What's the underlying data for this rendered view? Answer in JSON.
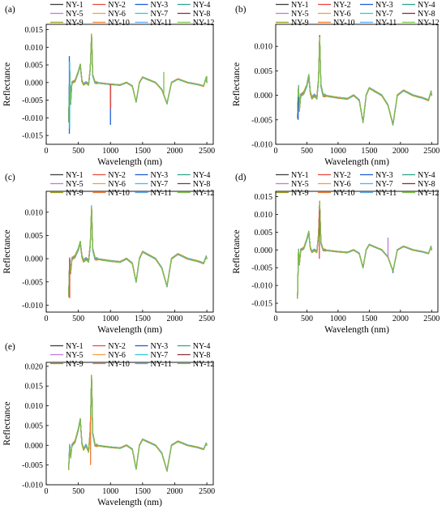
{
  "figure": {
    "panels": [
      {
        "label": "(a)",
        "xlabel": "Wavelength (nm)",
        "ylabel": "Reflectance"
      },
      {
        "label": "(b)",
        "xlabel": "Wavelength (nm)",
        "ylabel": "Reflectance"
      },
      {
        "label": "(c)",
        "xlabel": "Wavelength (nm)",
        "ylabel": "Reflectance"
      },
      {
        "label": "(d)",
        "xlabel": "Wavelength (nm)",
        "ylabel": "Reflectance"
      },
      {
        "label": "(e)",
        "xlabel": "Wavelength (nm)",
        "ylabel": "Reflectance"
      }
    ]
  },
  "chart_data": [
    {
      "type": "line",
      "title": "",
      "panel_label": "(a)",
      "xlabel": "Wavelength (nm)",
      "ylabel": "Reflectance",
      "xlim": [
        0,
        2600
      ],
      "ylim": [
        -0.0175,
        0.0165
      ],
      "xticks": [
        0,
        500,
        1000,
        1500,
        2000,
        2500
      ],
      "yticks": [
        -0.015,
        -0.01,
        -0.005,
        0.0,
        0.005,
        0.01,
        0.015
      ],
      "ytick_labels": [
        "-0.015",
        "-0.010",
        "-0.005",
        "0.000",
        "0.005",
        "0.010",
        "0.015"
      ],
      "legend": {
        "placement": "top",
        "columns": 4,
        "entries": [
          "NY-1",
          "NY-2",
          "NY-3",
          "NY-4",
          "NY-5",
          "NY-6",
          "NY-7",
          "NY-8",
          "NY-9",
          "NY-10",
          "NY-11",
          "NY-12"
        ]
      },
      "colors": [
        "#3f3f3f",
        "#e8483c",
        "#1f5fd6",
        "#2ca58d",
        "#c27be0",
        "#f2a03d",
        "#33c7e0",
        "#8b2e3a",
        "#9a9a1a",
        "#f07b2c",
        "#5fa8e8",
        "#7cc242"
      ],
      "base_profile": [
        [
          350,
          -0.011
        ],
        [
          365,
          0.004
        ],
        [
          380,
          -0.006
        ],
        [
          400,
          0.0
        ],
        [
          450,
          0.0005
        ],
        [
          500,
          0.003
        ],
        [
          530,
          0.005
        ],
        [
          555,
          0.0005
        ],
        [
          580,
          -0.0005
        ],
        [
          620,
          0.0
        ],
        [
          660,
          -0.0005
        ],
        [
          685,
          0.004
        ],
        [
          705,
          0.0135
        ],
        [
          725,
          0.002
        ],
        [
          760,
          0.0
        ],
        [
          1000,
          -0.0005
        ],
        [
          1150,
          -0.0007
        ],
        [
          1250,
          0.0
        ],
        [
          1340,
          -0.001
        ],
        [
          1400,
          -0.0055
        ],
        [
          1450,
          0.0
        ],
        [
          1500,
          0.0015
        ],
        [
          1700,
          0.0
        ],
        [
          1800,
          -0.002
        ],
        [
          1880,
          -0.006
        ],
        [
          1950,
          0.0
        ],
        [
          2050,
          0.001
        ],
        [
          2200,
          0.0
        ],
        [
          2350,
          -0.0005
        ],
        [
          2450,
          -0.001
        ],
        [
          2490,
          0.0015
        ],
        [
          2500,
          0.0
        ]
      ],
      "spikes": [
        {
          "series": 2,
          "x": 360,
          "values": [
            0.0075,
            -0.0145
          ]
        },
        {
          "series": 6,
          "x": 365,
          "values": [
            0.006,
            -0.013
          ]
        },
        {
          "series": 2,
          "x": 1000,
          "values": [
            -0.012
          ]
        },
        {
          "series": 1,
          "x": 1003,
          "values": [
            -0.0075
          ]
        },
        {
          "series": 11,
          "x": 1830,
          "values": [
            0.003
          ]
        },
        {
          "series": 11,
          "x": 2500,
          "values": [
            0.0018
          ]
        }
      ]
    },
    {
      "type": "line",
      "title": "",
      "panel_label": "(b)",
      "xlabel": "Wavelength (nm)",
      "ylabel": "Reflectance",
      "xlim": [
        0,
        2600
      ],
      "ylim": [
        -0.01,
        0.0145
      ],
      "xticks": [
        0,
        500,
        1000,
        1500,
        2000,
        2500
      ],
      "yticks": [
        -0.01,
        -0.005,
        0.0,
        0.005,
        0.01
      ],
      "ytick_labels": [
        "-0.010",
        "-0.005",
        "0.000",
        "0.005",
        "0.010"
      ],
      "legend": {
        "placement": "top",
        "columns": 4,
        "entries": [
          "NY-1",
          "NY-2",
          "NY-3",
          "NY-4",
          "NY-5",
          "NY-6",
          "NY-7",
          "NY-8",
          "NY-9",
          "NY-10",
          "NY-11",
          "NY-12"
        ]
      },
      "colors": [
        "#3f3f3f",
        "#e8483c",
        "#1f5fd6",
        "#2ca58d",
        "#c27be0",
        "#f2a03d",
        "#33c7e0",
        "#8b2e3a",
        "#9a9a1a",
        "#f07b2c",
        "#5fa8e8",
        "#7cc242"
      ],
      "base_profile": [
        [
          350,
          -0.0045
        ],
        [
          365,
          0.0018
        ],
        [
          380,
          -0.003
        ],
        [
          400,
          0.0
        ],
        [
          450,
          0.0005
        ],
        [
          500,
          0.002
        ],
        [
          530,
          0.004
        ],
        [
          555,
          0.0005
        ],
        [
          580,
          -0.0005
        ],
        [
          620,
          0.0
        ],
        [
          660,
          -0.0005
        ],
        [
          685,
          0.003
        ],
        [
          705,
          0.012
        ],
        [
          725,
          0.002
        ],
        [
          760,
          0.0
        ],
        [
          1000,
          -0.0005
        ],
        [
          1150,
          -0.0007
        ],
        [
          1250,
          0.0
        ],
        [
          1340,
          -0.001
        ],
        [
          1400,
          -0.0055
        ],
        [
          1450,
          0.0
        ],
        [
          1500,
          0.0015
        ],
        [
          1700,
          0.0
        ],
        [
          1800,
          -0.002
        ],
        [
          1880,
          -0.006
        ],
        [
          1950,
          0.0
        ],
        [
          2050,
          0.001
        ],
        [
          2200,
          0.0
        ],
        [
          2350,
          -0.0005
        ],
        [
          2450,
          -0.001
        ],
        [
          2490,
          0.0008
        ],
        [
          2500,
          0.0
        ]
      ],
      "spikes": [
        {
          "series": 2,
          "x": 360,
          "values": [
            -0.005
          ]
        },
        {
          "series": 7,
          "x": 705,
          "values": [
            0.0122
          ]
        }
      ]
    },
    {
      "type": "line",
      "title": "",
      "panel_label": "(c)",
      "xlabel": "Wavelength (nm)",
      "ylabel": "Reflectance",
      "xlim": [
        0,
        2600
      ],
      "ylim": [
        -0.0115,
        0.0145
      ],
      "xticks": [
        0,
        500,
        1000,
        1500,
        2000,
        2500
      ],
      "yticks": [
        -0.01,
        -0.005,
        0.0,
        0.005,
        0.01
      ],
      "ytick_labels": [
        "-0.010",
        "-0.005",
        "0.000",
        "0.005",
        "0.010"
      ],
      "legend": {
        "placement": "top",
        "columns": 4,
        "entries": [
          "NY-1",
          "NY-2",
          "NY-3",
          "NY-4",
          "NY-5",
          "NY-6",
          "NY-7",
          "NY-8",
          "NY-9",
          "NY-10",
          "NY-11",
          "NY-12"
        ]
      },
      "colors": [
        "#3f3f3f",
        "#e8483c",
        "#1f5fd6",
        "#2ca58d",
        "#c27be0",
        "#f2a03d",
        "#33c7e0",
        "#8b2e3a",
        "#9a9a1a",
        "#f07b2c",
        "#5fa8e8",
        "#7cc242"
      ],
      "base_profile": [
        [
          350,
          -0.008
        ],
        [
          365,
          0.0
        ],
        [
          380,
          -0.003
        ],
        [
          400,
          0.0
        ],
        [
          450,
          0.0005
        ],
        [
          500,
          0.002
        ],
        [
          530,
          0.0035
        ],
        [
          555,
          0.0005
        ],
        [
          580,
          -0.0005
        ],
        [
          620,
          0.0
        ],
        [
          660,
          -0.0005
        ],
        [
          685,
          0.003
        ],
        [
          705,
          0.011
        ],
        [
          725,
          0.002
        ],
        [
          760,
          0.0
        ],
        [
          1000,
          -0.0005
        ],
        [
          1150,
          -0.0007
        ],
        [
          1250,
          0.0
        ],
        [
          1340,
          -0.001
        ],
        [
          1400,
          -0.005
        ],
        [
          1450,
          0.0
        ],
        [
          1500,
          0.0015
        ],
        [
          1700,
          0.0
        ],
        [
          1800,
          -0.002
        ],
        [
          1880,
          -0.006
        ],
        [
          1950,
          0.0
        ],
        [
          2050,
          0.001
        ],
        [
          2200,
          0.0
        ],
        [
          2350,
          -0.0005
        ],
        [
          2450,
          -0.001
        ],
        [
          2490,
          0.0005
        ],
        [
          2500,
          0.0
        ]
      ],
      "spikes": [
        {
          "series": 6,
          "x": 705,
          "values": [
            0.0115
          ]
        },
        {
          "series": 1,
          "x": 365,
          "values": [
            -0.0085
          ]
        }
      ]
    },
    {
      "type": "line",
      "title": "",
      "panel_label": "(d)",
      "xlabel": "Wavelength (nm)",
      "ylabel": "Reflectance",
      "xlim": [
        0,
        2600
      ],
      "ylim": [
        -0.0175,
        0.0165
      ],
      "xticks": [
        0,
        500,
        1000,
        1500,
        2000,
        2500
      ],
      "yticks": [
        -0.015,
        -0.01,
        -0.005,
        0.0,
        0.005,
        0.01,
        0.015
      ],
      "ytick_labels": [
        "-0.015",
        "-0.010",
        "-0.005",
        "0.000",
        "0.005",
        "0.010",
        "0.015"
      ],
      "legend": {
        "placement": "top",
        "columns": 4,
        "entries": [
          "NY-1",
          "NY-2",
          "NY-3",
          "NY-4",
          "NY-5",
          "NY-6",
          "NY-7",
          "NY-8",
          "NY-9",
          "NY-10",
          "NY-11",
          "NY-12"
        ]
      },
      "colors": [
        "#3f3f3f",
        "#e8483c",
        "#1f5fd6",
        "#2ca58d",
        "#c27be0",
        "#f2a03d",
        "#33c7e0",
        "#8b2e3a",
        "#9a9a1a",
        "#f07b2c",
        "#5fa8e8",
        "#7cc242"
      ],
      "base_profile": [
        [
          350,
          -0.0135
        ],
        [
          365,
          0.0
        ],
        [
          380,
          -0.004
        ],
        [
          400,
          0.0
        ],
        [
          450,
          0.0005
        ],
        [
          500,
          0.003
        ],
        [
          530,
          0.005
        ],
        [
          555,
          0.0005
        ],
        [
          580,
          -0.0005
        ],
        [
          620,
          0.0
        ],
        [
          660,
          -0.0005
        ],
        [
          685,
          0.004
        ],
        [
          705,
          0.0135
        ],
        [
          725,
          0.002
        ],
        [
          760,
          0.0
        ],
        [
          1000,
          -0.0005
        ],
        [
          1150,
          -0.0007
        ],
        [
          1250,
          0.0
        ],
        [
          1340,
          -0.001
        ],
        [
          1400,
          -0.005
        ],
        [
          1450,
          0.0
        ],
        [
          1500,
          0.0015
        ],
        [
          1700,
          0.0
        ],
        [
          1800,
          -0.002
        ],
        [
          1880,
          -0.006
        ],
        [
          1950,
          0.0
        ],
        [
          2050,
          0.001
        ],
        [
          2200,
          0.0
        ],
        [
          2350,
          -0.0005
        ],
        [
          2450,
          -0.001
        ],
        [
          2490,
          0.001
        ],
        [
          2500,
          0.0
        ]
      ],
      "spikes": [
        {
          "series": 4,
          "x": 1800,
          "values": [
            0.0035
          ]
        },
        {
          "series": 1,
          "x": 700,
          "values": [
            -0.0025
          ]
        },
        {
          "series": 2,
          "x": 1880,
          "values": [
            -0.0065
          ]
        }
      ]
    },
    {
      "type": "line",
      "title": "",
      "panel_label": "(e)",
      "xlabel": "Wavelength (nm)",
      "ylabel": "Reflectance",
      "xlim": [
        0,
        2600
      ],
      "ylim": [
        -0.01,
        0.021
      ],
      "xticks": [
        0,
        500,
        1000,
        1500,
        2000,
        2500
      ],
      "yticks": [
        -0.01,
        -0.005,
        0.0,
        0.005,
        0.01,
        0.015,
        0.02
      ],
      "ytick_labels": [
        "-0.010",
        "-0.005",
        "0.000",
        "0.005",
        "0.010",
        "0.015",
        "0.020"
      ],
      "legend": {
        "placement": "top",
        "columns": 4,
        "entries": [
          "NY-1",
          "NY-2",
          "NY-3",
          "NY-4",
          "NY-5",
          "NY-6",
          "NY-7",
          "NY-8",
          "NY-9",
          "NY-10",
          "NY-11",
          "NY-12"
        ]
      },
      "colors": [
        "#3f3f3f",
        "#e8483c",
        "#1f5fd6",
        "#2ca58d",
        "#c27be0",
        "#f2a03d",
        "#33c7e0",
        "#8b2e3a",
        "#9a9a1a",
        "#f07b2c",
        "#5fa8e8",
        "#7cc242"
      ],
      "base_profile": [
        [
          350,
          -0.006
        ],
        [
          365,
          0.0
        ],
        [
          380,
          -0.003
        ],
        [
          400,
          0.0
        ],
        [
          450,
          0.001
        ],
        [
          500,
          0.004
        ],
        [
          530,
          0.0065
        ],
        [
          555,
          0.0005
        ],
        [
          580,
          -0.001
        ],
        [
          620,
          0.0
        ],
        [
          660,
          -0.0015
        ],
        [
          685,
          0.004
        ],
        [
          705,
          0.0175
        ],
        [
          725,
          0.003
        ],
        [
          760,
          0.0
        ],
        [
          1000,
          -0.0005
        ],
        [
          1150,
          -0.0007
        ],
        [
          1250,
          0.0
        ],
        [
          1340,
          -0.001
        ],
        [
          1400,
          -0.006
        ],
        [
          1450,
          0.0
        ],
        [
          1500,
          0.0015
        ],
        [
          1700,
          0.0
        ],
        [
          1800,
          -0.002
        ],
        [
          1880,
          -0.0065
        ],
        [
          1950,
          0.0
        ],
        [
          2050,
          0.001
        ],
        [
          2200,
          0.0
        ],
        [
          2350,
          -0.0005
        ],
        [
          2450,
          -0.001
        ],
        [
          2490,
          0.0005
        ],
        [
          2500,
          0.0
        ]
      ],
      "spikes": [
        {
          "series": 9,
          "x": 690,
          "values": [
            -0.005
          ]
        },
        {
          "series": 1,
          "x": 700,
          "values": [
            0.014
          ]
        }
      ]
    }
  ]
}
